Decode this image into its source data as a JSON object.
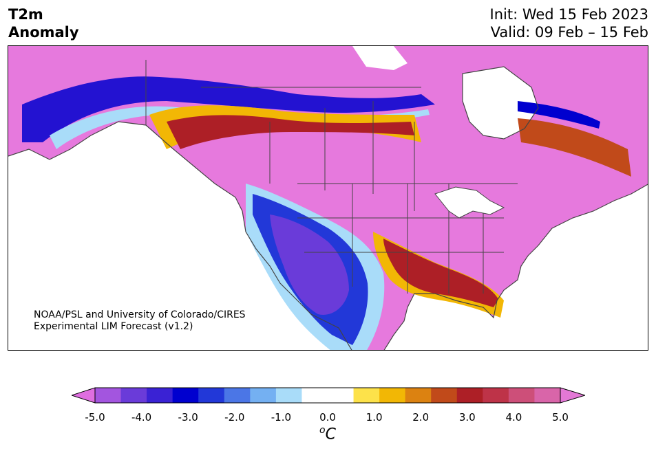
{
  "title": {
    "left_line1": "T2m",
    "left_line2": "Anomaly",
    "right_line1": "Init: Wed 15 Feb 2023",
    "right_line2": "Valid: 09 Feb – 15 Feb"
  },
  "credit": {
    "line1": "NOAA/PSL and University of Colorado/CIRES",
    "line2": "Experimental LIM Forecast (v1.2)"
  },
  "colorbar": {
    "unit_sup": "o",
    "unit_base": "C",
    "ticks": [
      "-5.0",
      "-4.0",
      "-3.0",
      "-2.0",
      "-1.0",
      "0.0",
      "1.0",
      "2.0",
      "3.0",
      "4.0",
      "5.0"
    ],
    "colors": [
      "#df6ee0",
      "#a355df",
      "#6a3bd9",
      "#3a22d4",
      "#0000cf",
      "#2238d8",
      "#4b76e6",
      "#74b0f2",
      "#a9dcf9",
      "#ffffff",
      "#ffffff",
      "#fde24a",
      "#f2b705",
      "#dc8211",
      "#c14a1a",
      "#ad1f26",
      "#be3348",
      "#cd4f79",
      "#d965a9",
      "#e378d6"
    ]
  },
  "map": {
    "land_color": "#e679dd",
    "outline_color": "#444444"
  }
}
